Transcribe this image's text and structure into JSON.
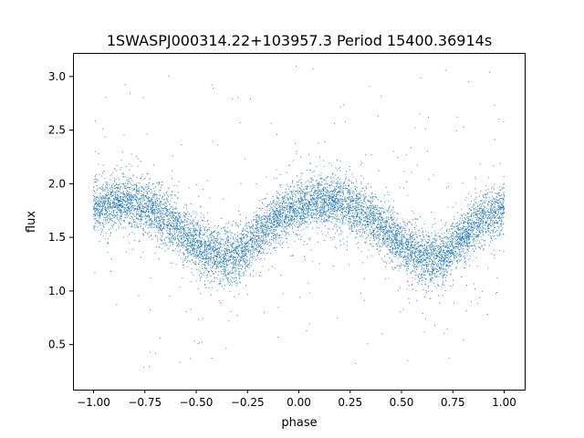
{
  "chart_data": {
    "type": "scatter",
    "title": "1SWASPJ000314.22+103957.3 Period 15400.36914s",
    "xlabel": "phase",
    "ylabel": "flux",
    "xlim": [
      -1.1,
      1.1
    ],
    "ylim": [
      0.08,
      3.22
    ],
    "grid": false,
    "legend": "none",
    "marker_color": "#1f77b4",
    "x_ticks": [
      {
        "value": -1.0,
        "label": "−1.00"
      },
      {
        "value": -0.75,
        "label": "−0.75"
      },
      {
        "value": -0.5,
        "label": "−0.50"
      },
      {
        "value": -0.25,
        "label": "−0.25"
      },
      {
        "value": 0.0,
        "label": "0.00"
      },
      {
        "value": 0.25,
        "label": "0.25"
      },
      {
        "value": 0.5,
        "label": "0.50"
      },
      {
        "value": 0.75,
        "label": "0.75"
      },
      {
        "value": 1.0,
        "label": "1.00"
      }
    ],
    "y_ticks": [
      {
        "value": 0.5,
        "label": "0.5"
      },
      {
        "value": 1.0,
        "label": "1.0"
      },
      {
        "value": 1.5,
        "label": "1.5"
      },
      {
        "value": 2.0,
        "label": "2.0"
      },
      {
        "value": 2.5,
        "label": "2.5"
      },
      {
        "value": 3.0,
        "label": "3.0"
      }
    ],
    "series": [
      {
        "x": [
          -1.0,
          -0.95,
          -0.9,
          -0.85,
          -0.8,
          -0.75,
          -0.7,
          -0.65,
          -0.6,
          -0.55,
          -0.5,
          -0.45,
          -0.4,
          -0.35,
          -0.3,
          -0.25,
          -0.2,
          -0.15,
          -0.1,
          -0.05,
          0.0,
          0.05,
          0.1,
          0.15,
          0.2,
          0.25,
          0.3,
          0.35,
          0.4,
          0.45,
          0.5,
          0.55,
          0.6,
          0.65,
          0.7,
          0.75,
          0.8,
          0.85,
          0.9,
          0.95,
          1.0
        ],
        "y": [
          1.78,
          1.81,
          1.83,
          1.84,
          1.82,
          1.79,
          1.74,
          1.68,
          1.61,
          1.52,
          1.44,
          1.37,
          1.32,
          1.3,
          1.33,
          1.42,
          1.52,
          1.61,
          1.68,
          1.74,
          1.78,
          1.81,
          1.83,
          1.84,
          1.82,
          1.79,
          1.74,
          1.68,
          1.61,
          1.52,
          1.44,
          1.37,
          1.32,
          1.3,
          1.33,
          1.42,
          1.52,
          1.61,
          1.68,
          1.74,
          1.78
        ],
        "scatter_sd": [
          0.12,
          0.12,
          0.12,
          0.12,
          0.12,
          0.12,
          0.12,
          0.12,
          0.12,
          0.12,
          0.12,
          0.12,
          0.12,
          0.13,
          0.13,
          0.12,
          0.12,
          0.12,
          0.12,
          0.12,
          0.12,
          0.12,
          0.12,
          0.12,
          0.12,
          0.12,
          0.12,
          0.12,
          0.12,
          0.12,
          0.12,
          0.12,
          0.12,
          0.13,
          0.13,
          0.12,
          0.12,
          0.12,
          0.12,
          0.12,
          0.12
        ]
      }
    ]
  }
}
